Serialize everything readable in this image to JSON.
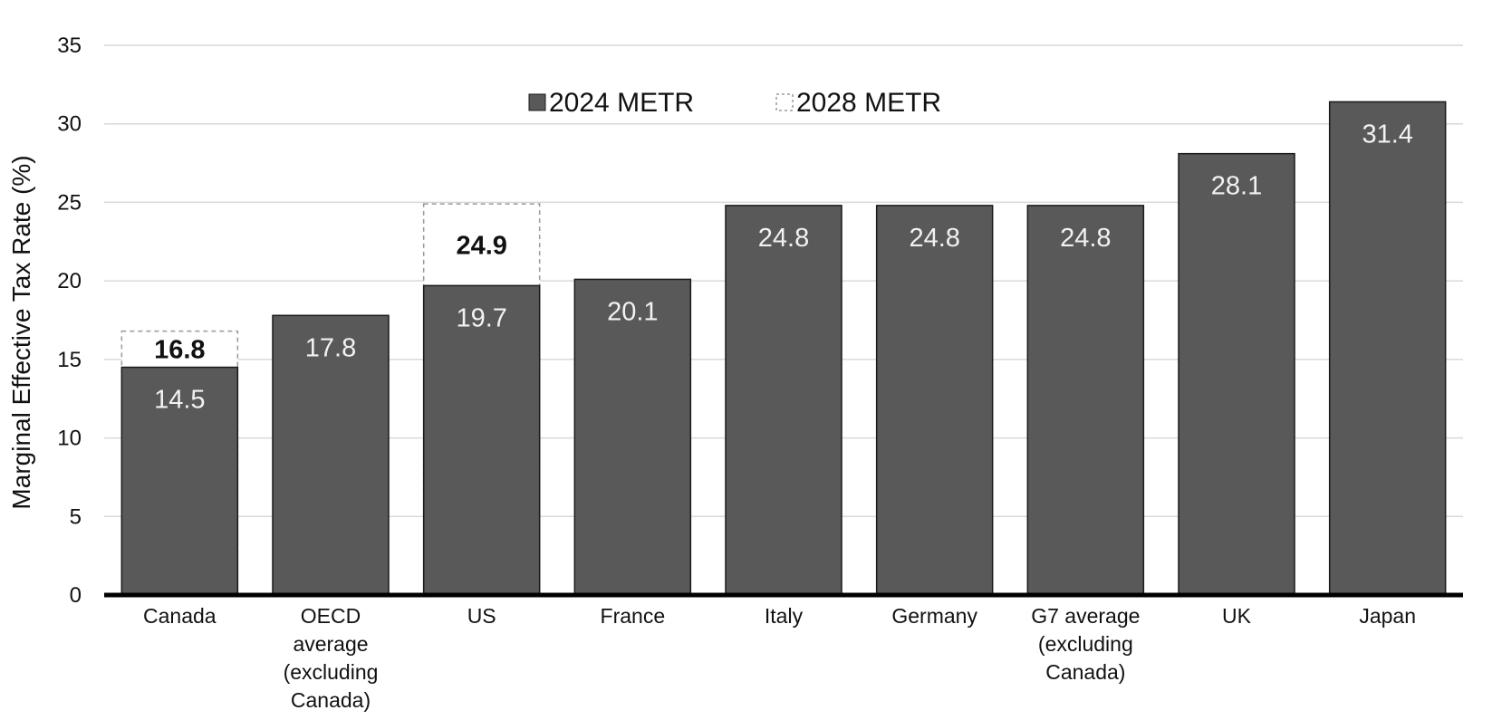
{
  "chart_data": {
    "type": "bar",
    "ylabel": "Marginal Effective Tax Rate (%)",
    "xlabel": "",
    "ylim": [
      0,
      35
    ],
    "yticks": [
      "0",
      "5",
      "10",
      "15",
      "20",
      "25",
      "30",
      "35"
    ],
    "grid": true,
    "legend_position": "top-center",
    "categories": [
      [
        "Canada"
      ],
      [
        "OECD",
        "average",
        "(excluding",
        "Canada)"
      ],
      [
        "US"
      ],
      [
        "France"
      ],
      [
        "Italy"
      ],
      [
        "Germany"
      ],
      [
        "G7 average",
        "(excluding",
        "Canada)"
      ],
      [
        "UK"
      ],
      [
        "Japan"
      ]
    ],
    "series": [
      {
        "name": "2024 METR",
        "color": "#595959",
        "style": "solid",
        "values": [
          14.5,
          17.8,
          19.7,
          20.1,
          24.8,
          24.8,
          24.8,
          28.1,
          31.4
        ],
        "labels": [
          "14.5",
          "17.8",
          "19.7",
          "20.1",
          "24.8",
          "24.8",
          "24.8",
          "28.1",
          "31.4"
        ]
      },
      {
        "name": "2028 METR",
        "color": "#ffffff",
        "style": "dashed-outline",
        "values": [
          16.8,
          null,
          24.9,
          null,
          null,
          null,
          null,
          null,
          null
        ],
        "labels": [
          "16.8",
          null,
          "24.9",
          null,
          null,
          null,
          null,
          null,
          null
        ]
      }
    ]
  }
}
